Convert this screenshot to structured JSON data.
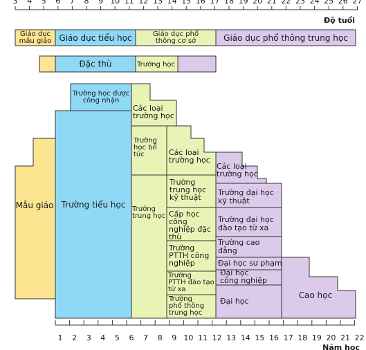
{
  "age_axis": {
    "label": "Độ tuổi",
    "ticks": [
      3,
      4,
      5,
      6,
      7,
      8,
      9,
      10,
      11,
      12,
      13,
      14,
      15,
      16,
      17,
      18,
      19,
      20,
      21,
      22,
      23,
      24,
      25,
      26,
      27
    ]
  },
  "year_axis": {
    "label": "Năm học",
    "ticks": [
      1,
      2,
      3,
      4,
      5,
      6,
      7,
      8,
      9,
      10,
      11,
      12,
      13,
      14,
      15,
      16,
      17,
      18,
      19,
      20,
      21,
      22
    ]
  },
  "stages": [
    {
      "lines": [
        "Giáo dục",
        "mầu giáo"
      ]
    },
    {
      "lines": [
        "Giáo dục tiểu học"
      ]
    },
    {
      "lines": [
        "Giáo dục phổ",
        "thông cơ sở"
      ]
    },
    {
      "lines": [
        "Giáo dục phổ thông trung học"
      ]
    }
  ],
  "tracks": [
    "Đặc thù",
    "Trường học"
  ],
  "cells": [
    {
      "lines": [
        "Mẫu giáo"
      ]
    },
    {
      "lines": [
        "Trường học được",
        "công nhận"
      ]
    },
    {
      "lines": [
        "Trường tiểu học"
      ]
    },
    {
      "lines": [
        "Các loại",
        "trường học"
      ]
    },
    {
      "lines": [
        "Trường",
        "học bổ",
        "túc"
      ]
    },
    {
      "lines": [
        "Trường",
        "trung học"
      ]
    },
    {
      "lines": [
        "Các loại",
        "trường học"
      ]
    },
    {
      "lines": [
        "Trường",
        "trung học",
        "kỹ thuật"
      ]
    },
    {
      "lines": [
        "Cấp học",
        "công",
        "nghiệp đặc",
        "thù"
      ]
    },
    {
      "lines": [
        "Trường",
        "PTTH công",
        "nghiệp"
      ]
    },
    {
      "lines": [
        "Trường",
        "PTTH đào tạo",
        "từ xa"
      ]
    },
    {
      "lines": [
        "Trường",
        "phổ thông",
        "trung học"
      ]
    },
    {
      "lines": [
        "Các loại",
        "trường học"
      ]
    },
    {
      "lines": [
        "Trường đại học",
        "kỹ thuật"
      ]
    },
    {
      "lines": [
        "Trường đại học",
        "đào tạo từ xa"
      ]
    },
    {
      "lines": [
        "Trường cao",
        "đẳng"
      ]
    },
    {
      "lines": [
        "Đại học sư phạm"
      ]
    },
    {
      "lines": [
        "Đại học",
        "công nghiệp"
      ]
    },
    {
      "lines": [
        "Đại học"
      ]
    },
    {
      "lines": [
        "Cao học"
      ]
    }
  ]
}
